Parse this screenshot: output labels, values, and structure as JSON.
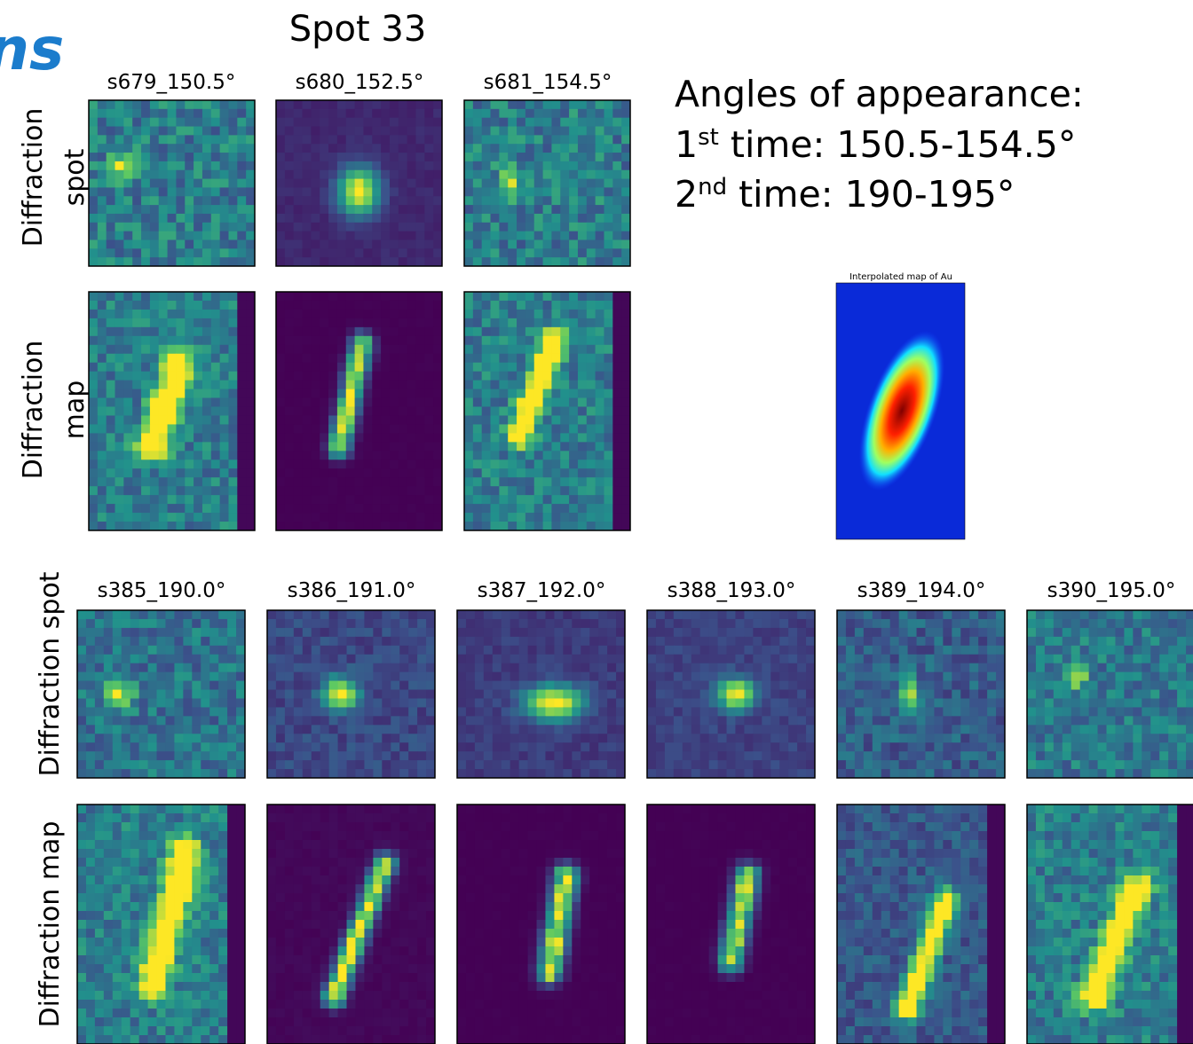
{
  "header": {
    "logo_fragment": "ns",
    "title": "Spot 33"
  },
  "first_appearance": {
    "panels": [
      "s679_150.5°",
      "s680_152.5°",
      "s681_154.5°"
    ],
    "row_labels": [
      [
        "Diffraction",
        "spot"
      ],
      [
        "Diffraction",
        "map"
      ]
    ]
  },
  "second_appearance": {
    "panels": [
      "s385_190.0°",
      "s386_191.0°",
      "s387_192.0°",
      "s388_193.0°",
      "s389_194.0°",
      "s390_195.0°"
    ],
    "row_labels": [
      "Diffraction spot",
      "Diffraction map"
    ]
  },
  "notes": {
    "heading": "Angles of appearance:",
    "lines": [
      {
        "ordinal": "1",
        "suffix": "st",
        "text": " time: 150.5-154.5°"
      },
      {
        "ordinal": "2",
        "suffix": "nd",
        "text": " time: 190-195°"
      }
    ]
  },
  "inset": {
    "title": "Interpolated map of Au"
  }
}
